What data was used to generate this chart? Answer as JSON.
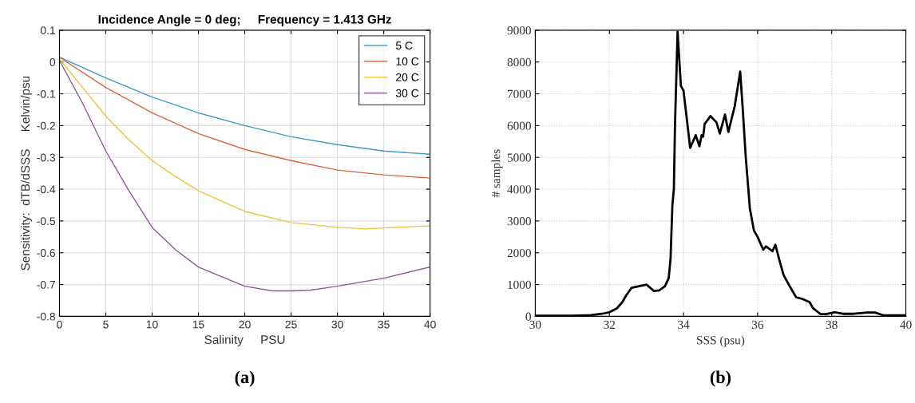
{
  "chart_data": [
    {
      "type": "line",
      "title": "Incidence Angle = 0 deg;     Frequency = 1.413 GHz",
      "xlabel": "Salinity     PSU",
      "ylabel": "Sensitivity:  dTB/dSSS     Kelvin/psu",
      "annotations": [
        "(a)"
      ],
      "xlim": [
        0,
        40
      ],
      "ylim": [
        -0.8,
        0.1
      ],
      "xticks": [
        0,
        5,
        10,
        15,
        20,
        25,
        30,
        35,
        40
      ],
      "yticks": [
        -0.8,
        -0.7,
        -0.6,
        -0.5,
        -0.4,
        -0.3,
        -0.2,
        -0.1,
        0,
        0.1
      ],
      "grid": true,
      "legend": "top right",
      "series": [
        {
          "name": "5 C",
          "color": "#3c9cc4",
          "x": [
            0,
            5,
            10,
            15,
            20,
            25,
            30,
            35,
            40
          ],
          "values": [
            0.015,
            -0.05,
            -0.11,
            -0.16,
            -0.2,
            -0.235,
            -0.26,
            -0.28,
            -0.29
          ]
        },
        {
          "name": "10 C",
          "color": "#d9663f",
          "x": [
            0,
            5,
            10,
            15,
            20,
            25,
            30,
            35,
            40
          ],
          "values": [
            0.015,
            -0.08,
            -0.16,
            -0.225,
            -0.275,
            -0.31,
            -0.34,
            -0.355,
            -0.365
          ]
        },
        {
          "name": "20 C",
          "color": "#e8c53a",
          "x": [
            0,
            2.5,
            5,
            7.5,
            10,
            12.5,
            15,
            20,
            25,
            30,
            33,
            35,
            40
          ],
          "values": [
            0.01,
            -0.08,
            -0.17,
            -0.245,
            -0.31,
            -0.36,
            -0.405,
            -0.47,
            -0.505,
            -0.52,
            -0.525,
            -0.522,
            -0.515
          ]
        },
        {
          "name": "30 C",
          "color": "#8e5a92",
          "x": [
            0,
            2.5,
            5,
            7.5,
            10,
            12.5,
            15,
            20,
            23,
            25,
            27,
            30,
            35,
            40
          ],
          "values": [
            0.005,
            -0.13,
            -0.28,
            -0.405,
            -0.52,
            -0.59,
            -0.645,
            -0.705,
            -0.72,
            -0.72,
            -0.718,
            -0.705,
            -0.68,
            -0.645
          ]
        }
      ]
    },
    {
      "type": "line",
      "xlabel": "SSS (psu)",
      "ylabel": "# samples",
      "annotations": [
        "(b)"
      ],
      "xlim": [
        30,
        40
      ],
      "ylim": [
        0,
        9000
      ],
      "xticks": [
        30,
        32,
        34,
        36,
        38,
        40
      ],
      "yticks": [
        0,
        1000,
        2000,
        3000,
        4000,
        5000,
        6000,
        7000,
        8000,
        9000
      ],
      "grid": true,
      "series": [
        {
          "color": "#000000",
          "x": [
            30,
            31,
            31.5,
            31.8,
            32,
            32.2,
            32.35,
            32.45,
            32.6,
            32.8,
            33,
            33.2,
            33.35,
            33.5,
            33.6,
            33.65,
            33.7,
            33.74,
            33.77,
            33.84,
            33.93,
            34.0,
            34.1,
            34.18,
            34.33,
            34.43,
            34.49,
            34.53,
            34.57,
            34.73,
            34.89,
            34.98,
            35.12,
            35.21,
            35.38,
            35.53,
            35.6,
            35.68,
            35.75,
            35.79,
            35.9,
            36.0,
            36.15,
            36.23,
            36.4,
            36.48,
            36.58,
            36.7,
            36.89,
            37.04,
            37.2,
            37.3,
            37.4,
            37.5,
            37.7,
            37.85,
            38.08,
            38.3,
            38.6,
            38.95,
            39.17,
            39.4,
            40
          ],
          "values": [
            20,
            20,
            40,
            80,
            130,
            250,
            450,
            650,
            900,
            950,
            1000,
            800,
            820,
            950,
            1200,
            1800,
            3500,
            4000,
            6000,
            8950,
            7250,
            7100,
            6100,
            5300,
            5700,
            5350,
            5700,
            5650,
            6050,
            6300,
            6100,
            5750,
            6350,
            5800,
            6600,
            7700,
            6500,
            5000,
            4000,
            3400,
            2700,
            2500,
            2100,
            2200,
            2050,
            2250,
            1800,
            1300,
            900,
            600,
            550,
            500,
            450,
            250,
            70,
            70,
            130,
            80,
            80,
            120,
            120,
            30,
            30
          ]
        }
      ]
    }
  ]
}
